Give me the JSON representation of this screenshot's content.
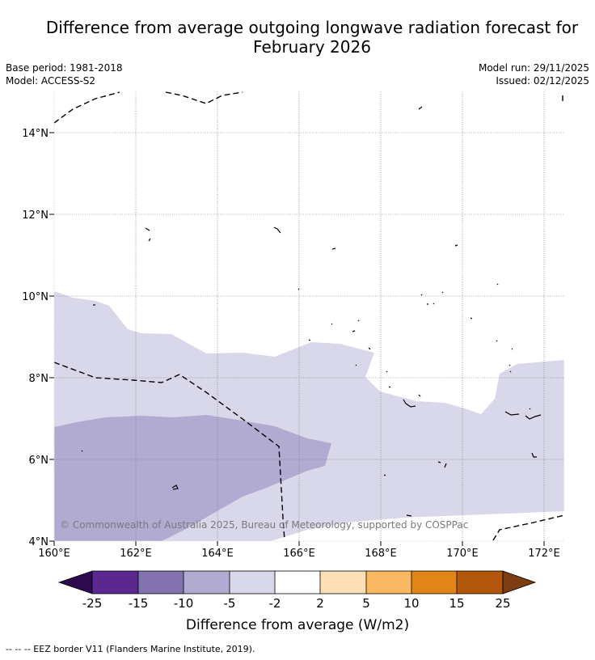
{
  "header": {
    "title_line1": "Difference from average outgoing longwave radiation forecast for",
    "title_line2": "February 2026",
    "base_period": "Base period: 1981-2018",
    "model": "Model: ACCESS-S2",
    "model_run": "Model run: 29/11/2025",
    "issued": "Issued: 02/12/2025"
  },
  "map": {
    "x_ticks": [
      "160°E",
      "162°E",
      "164°E",
      "166°E",
      "168°E",
      "170°E",
      "172°E"
    ],
    "y_ticks": [
      "14°N",
      "12°N",
      "10°N",
      "8°N",
      "6°N",
      "4°N"
    ],
    "lon_range": [
      160,
      172.5
    ],
    "lat_range": [
      4,
      15.1
    ],
    "copyright": "© Commonwealth of Australia 2025, Bureau of Meteorology, supported by COSPPac",
    "zones": [
      {
        "category": "-5 to -2",
        "color": "#d8d8ea"
      },
      {
        "category": "-10 to -5",
        "color": "#b1abd2"
      }
    ]
  },
  "colorbar": {
    "ticks": [
      "-25",
      "-15",
      "-10",
      "-5",
      "-2",
      "2",
      "5",
      "10",
      "15",
      "25"
    ],
    "colors": [
      "#2d0a4e",
      "#5b2890",
      "#8473b1",
      "#b1abd2",
      "#d8d8ea",
      "#ffffff",
      "#fde0b6",
      "#fbb862",
      "#e18518",
      "#b3580a",
      "#7f3c10"
    ],
    "label": "Difference from average (W/m2)"
  },
  "footnote": "--  --  -- EEZ border V11 (Flanders Marine Institute, 2019)."
}
